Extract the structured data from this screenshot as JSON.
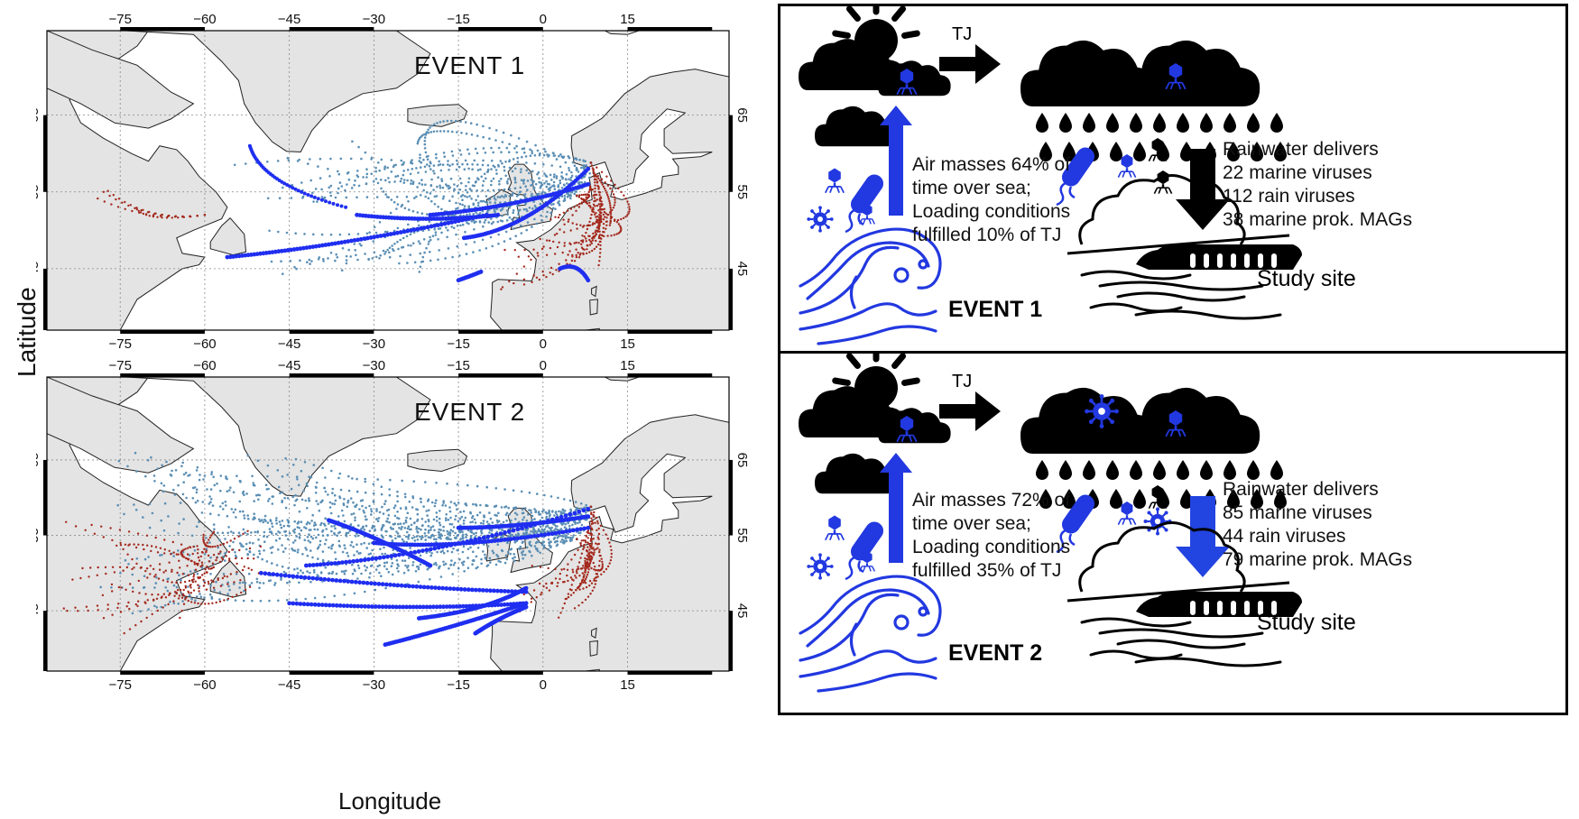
{
  "axes": {
    "ylabel": "Latitude",
    "xlabel": "Longitude",
    "lon_ticks": [
      "−75",
      "−60",
      "−45",
      "−30",
      "−15",
      "0",
      "15"
    ],
    "lat_ticks": [
      "45",
      "55",
      "65"
    ]
  },
  "maps": [
    {
      "title": "EVENT 1",
      "lon_range": [
        -88,
        33
      ],
      "lat_range": [
        37,
        76
      ]
    },
    {
      "title": "EVENT 2",
      "lon_range": [
        -88,
        33
      ],
      "lat_range": [
        37,
        76
      ]
    }
  ],
  "colors": {
    "land": "#e4e4e4",
    "sea": "#ffffff",
    "traj_light": "#5b8fb5",
    "traj_dark": "#1f2ef0",
    "traj_red": "#a3281c",
    "icon_blue": "#2238e0"
  },
  "panels": [
    {
      "title": "EVENT 1",
      "tj": "TJ",
      "air_lines": [
        "Air masses 64% of",
        "time over sea;",
        "Loading conditions",
        "fulfilled 10% of TJ"
      ],
      "rain_lines": [
        "Rainwater delivers",
        "22 marine viruses",
        "112 rain viruses",
        "38 marine prok. MAGs"
      ],
      "site": "Study site",
      "down_arrow_color": "#000000"
    },
    {
      "title": "EVENT 2",
      "tj": "TJ",
      "air_lines": [
        "Air masses 72% of",
        "time over sea;",
        "Loading conditions",
        "fulfilled 35% of TJ"
      ],
      "rain_lines": [
        "Rainwater delivers",
        "85 marine viruses",
        "44 rain viruses",
        "79 marine prok. MAGs"
      ],
      "site": "Study site",
      "down_arrow_color": "#2244e0"
    }
  ]
}
